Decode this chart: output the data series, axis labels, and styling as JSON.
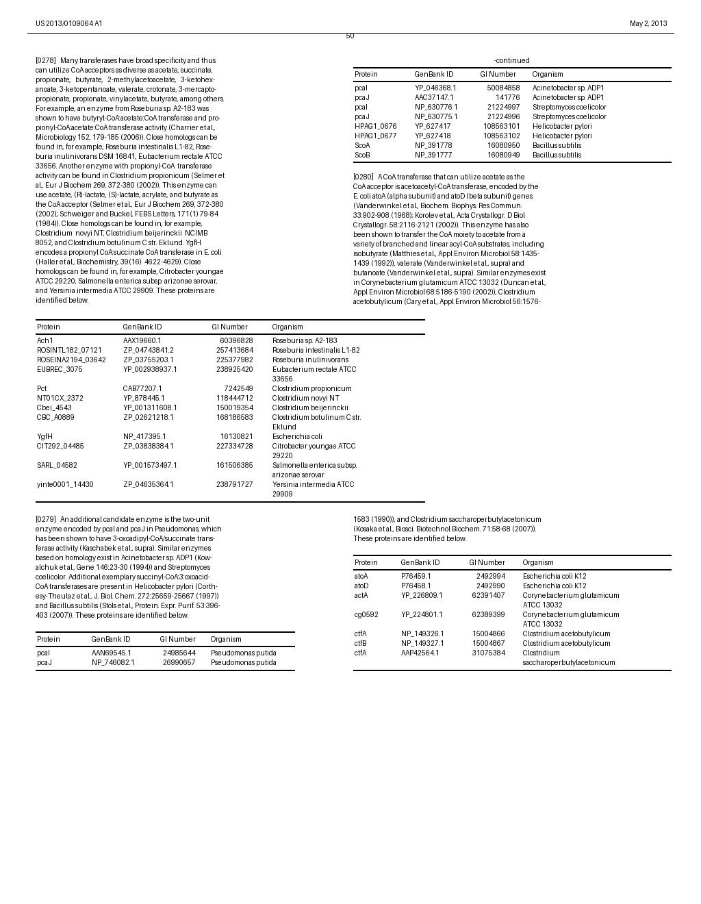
{
  "page_num": "50",
  "left_header": "US 2013/0109064 A1",
  "right_header": "May 2, 2013",
  "background": "#ffffff",
  "text_color": "#000000",
  "table1_header": "-continued",
  "table1_cols": [
    "Protein",
    "GenBank ID",
    "GI Number",
    "Organism"
  ],
  "table1_rows": [
    [
      "pcaI",
      "YP_046368.1",
      "50084858",
      "Acinetobacter sp. ADP1"
    ],
    [
      "pcaJ",
      "AAC37147.1",
      "141776",
      "Acinetobacter sp. ADP1"
    ],
    [
      "pcaI",
      "NP_630776.1",
      "21224997",
      "Streptomyces coelicolor"
    ],
    [
      "pcaJ",
      "NP_630775.1",
      "21224996",
      "Streptomyces coelicolor"
    ],
    [
      "HPAG1_0676",
      "YP_627417",
      "108563101",
      "Helicobacter pylori"
    ],
    [
      "HPAG1_0677",
      "YP_627418",
      "108563102",
      "Helicobacter pylori"
    ],
    [
      "ScoA",
      "NP_391778",
      "16080950",
      "Bacillus subtilis"
    ],
    [
      "ScoB",
      "NP_391777",
      "16080949",
      "Bacillus subtilis"
    ]
  ],
  "table2_cols": [
    "Protein",
    "GenBank ID",
    "GI Number",
    "Organism"
  ],
  "table2_rows": [
    [
      "Ach1",
      "AAX19660.1",
      "60396828",
      "Roseburia sp. A2-183"
    ],
    [
      "ROSINTL182_07121",
      "ZP_04743841.2",
      "257413684",
      "Roseburia intestinalis L1-82"
    ],
    [
      "ROSEINA2194_03642",
      "ZP_03755203.1",
      "225377982",
      "Roseburia inulinivorans"
    ],
    [
      "EUBREC_3075",
      "YP_002938937.1",
      "238925420",
      "Eubacterium rectale ATCC\n33656"
    ],
    [
      "Pct",
      "CAB77207.1",
      "7242549",
      "Clostridium propionicum"
    ],
    [
      "NT01CX_2372",
      "YP_878445.1",
      "118444712",
      "Clostridium novyi NT"
    ],
    [
      "Cbei_4543",
      "YP_001311608.1",
      "150019354",
      "Clostridium beijerinckii"
    ],
    [
      "CBC_A0889",
      "ZP_02621218.1",
      "168186583",
      "Clostridium botulinum C str.\nEklund"
    ],
    [
      "YgfH",
      "NP_417395.1",
      "16130821",
      "Escherichia coli"
    ],
    [
      "CIT292_04485",
      "ZP_03838384.1",
      "227334728",
      "Citrobacter youngae ATCC\n29220"
    ],
    [
      "SARL_04582",
      "YP_001573497.1",
      "161506385",
      "Salmonella enterica subsp.\narizonae serovar"
    ],
    [
      "yinte0001_14430",
      "ZP_04635364.1",
      "238791727",
      "Yersinia intermedia ATCC\n29909"
    ]
  ],
  "table3_cols": [
    "Protein",
    "GenBank ID",
    "GI Number",
    "Organism"
  ],
  "table3_rows": [
    [
      "pcaI",
      "AAN69545.1",
      "24985644",
      "Pseudomonas putida"
    ],
    [
      "pcaJ",
      "NP_746082.1",
      "26990657",
      "Pseudomonas putida"
    ]
  ],
  "table4_cols": [
    "Protein",
    "GenBank ID",
    "GI Number",
    "Organism"
  ],
  "table4_rows": [
    [
      "atoA",
      "P76459.1",
      "2492994",
      "Escherichia coli K12"
    ],
    [
      "atoD",
      "P76458.1",
      "2492990",
      "Escherichia coli K12"
    ],
    [
      "actA",
      "YP_226809.1",
      "62391407",
      "Corynebacterium glutamicum\nATCC 13032"
    ],
    [
      "cg0592",
      "YP_224801.1",
      "62389399",
      "Corynebacterium glutamicum\nATCC 13032"
    ],
    [
      "ctfA",
      "NP_149326.1",
      "15004866",
      "Clostridium acetobutylicum"
    ],
    [
      "ctfB",
      "NP_149327.1",
      "15004867",
      "Clostridium acetobutylicum"
    ],
    [
      "ctfA",
      "AAP42564.1",
      "31075384",
      "Clostridium\nsaccharoperbutylacetonicum"
    ]
  ],
  "para278_lines": [
    "[0278]   Many transferases have broad specificity and thus",
    "can utilize CoA acceptors as diverse as acetate, succinate,",
    "propionate,   butyrate,   2-methylacetoacetate,   3-ketohex-",
    "anoate, 3-ketopentanoate, valerate, crotonate, 3-mercapto-",
    "propionate, propionate, vinylacetate, butyrate, among others.",
    "For example, an enzyme from Roseburia sp. A2-183 was",
    "shown to have butyryl-CoA:acetate:CoA transferase and pro-",
    "pionyl-CoA:acetate:CoA transferase activity (Charrier et al.,",
    "Microbiology 152, 179-185 (2006)). Close homologs can be",
    "found in, for example, Roseburia intestinalis L1-82, Rose-",
    "buria inulinivorans DSM 16841, Eubacterium rectale ATCC",
    "33656. Another enzyme with propionyl-CoA  transferase",
    "activity can be found in Clostridium propionicum (Selmer et",
    "al., Eur J Biochem 269, 372-380 (2002)). This enzyme can",
    "use acetate, (R)-lactate, (S)-lactate, acrylate, and butyrate as",
    "the CoA acceptor (Selmer et al., Eur J Biochem 269, 372-380",
    "(2002); Schweiger and Buckel, FEBS Letters, 171(1) 79-84",
    "(1984)). Close homologs can be found in, for example,",
    "Clostridium  novyi NT, Clostridium beijerinckii  NCIMB",
    "8052, and Clostridium botulinum C str. Eklund. YgfH",
    "encodes a propionyl CoA:succinate CoA transferase in E. coli",
    "(Haller et al., Biochemistry, 39(16)  4622-4629). Close",
    "homologs can be found in, for example, Citrobacter youngae",
    "ATCC 29220, Salmonella enterica subsp. arizonae serovar,",
    "and Yersinia intermedia ATCC 29909. These proteins are",
    "identified below."
  ],
  "para280_lines": [
    "[0280]   A CoA transferase that can utilize acetate as the",
    "CoA acceptor is acetoacetyl-CoA transferase, encoded by the",
    "E. coli atoA (alpha subunit) and atoD (beta subunit) genes",
    "(Vanderwinkel et al., Biochem. Biophys. Res Commun.",
    "33:902-908 (1968); Korolev et al., Acta Crystallogr. D Biol",
    "Crystallogr. 58:2116-2121 (2002)). This enzyme has also",
    "been shown to transfer the CoA moiety to acetate from a",
    "variety of branched and linear acyl-CoA substrates, including",
    "isobutyrate (Matthies et al., Appl Environ Microbiol 58:1435-",
    "1439 (1992)), valerate (Vanderwinkel et al., supra) and",
    "butanoate (Vanderwinkel et al., supra). Similar enzymes exist",
    "in Corynebacterium glutamicum ATCC 13032 (Duncan et al.,",
    "Appl Environ Microbiol 68:5186-5190 (2002)), Clostridium",
    "acetobutylicum (Cary et al., Appl Environ Microbiol 56:1576-"
  ],
  "para279_left_lines": [
    "[0279]   An additional candidate enzyme is the two-unit",
    "enzyme encoded by pcaI and pcaJ in Pseudomonas, which",
    "has been shown to have 3-oxoadipyl-CoA/succinate trans-",
    "ferase activity (Kaschabek et al., supra). Similar enzymes",
    "based on homology exist in Acinetobacter sp. ADP1 (Kow-",
    "alchuk et al., Gene 146:23-30 (1994)) and Streptomyces",
    "coelicolor. Additional exemplary succinyl-CoA:3:oxoacid-",
    "CoA transferases are present in Helicobacter pylori (Corth-",
    "esy-Theulaz et al., J. Biol. Chem. 272:25659-25667 (1997))",
    "and Bacillus subtilis (Stols et al., Protein. Expr. Purif. 53:396-",
    "403 (2007)). These proteins are identified below."
  ],
  "para279_right_lines": [
    "1583 (1990)), and Clostridium saccharoperbutylacetonicum",
    "(Kosaka et al., Biosci. Biotechnol Biochem. 71:58-68 (2007)).",
    "These proteins are identified below."
  ]
}
